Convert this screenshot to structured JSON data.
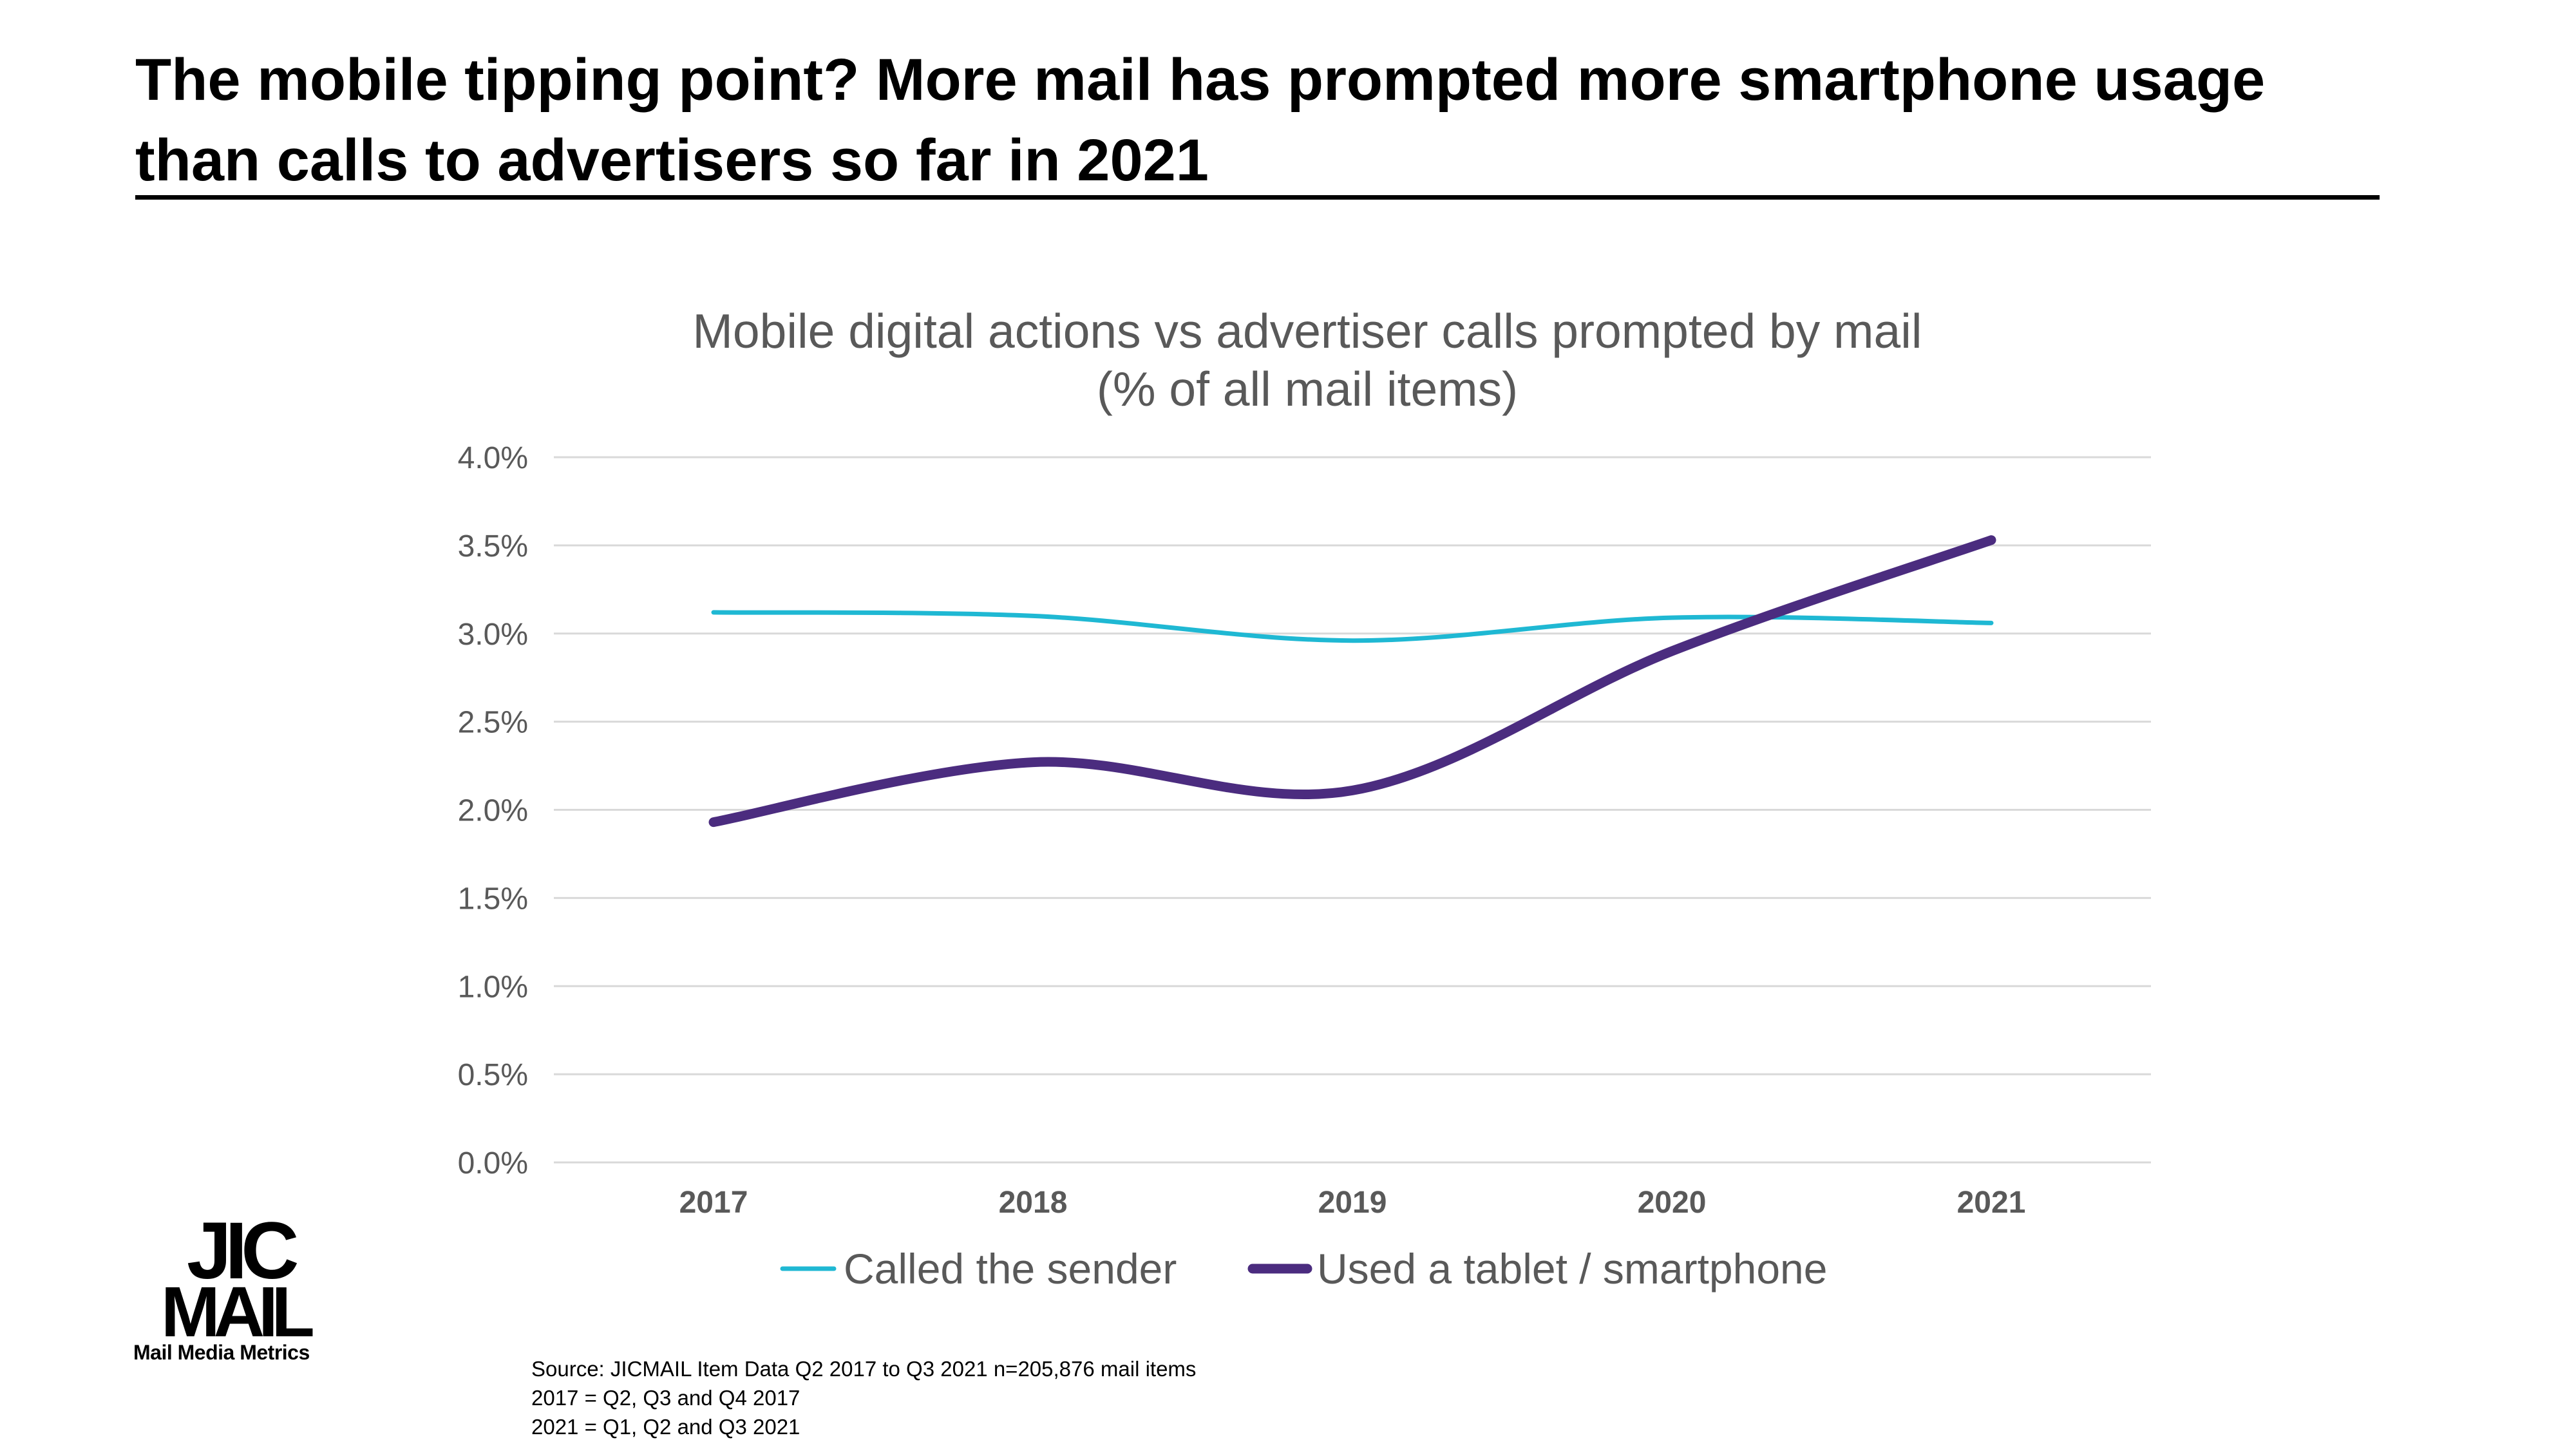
{
  "slide": {
    "headline_line1": "The mobile tipping point? More mail has prompted more smartphone usage",
    "headline_line2": "than calls to advertisers so far in 2021",
    "logo_text_top": "JIC",
    "logo_text_bottom": "MAIL",
    "tagline": "Mail Media Metrics",
    "source_lines": [
      "Source: JICMAIL Item Data Q2 2017 to Q3 2021 n=205,876 mail items",
      "2017 = Q2, Q3 and Q4 2017",
      "2021 = Q1, Q2 and Q3 2021"
    ]
  },
  "chart_data": {
    "type": "line",
    "title_line1": "Mobile digital actions vs advertiser calls prompted by mail",
    "title_line2": "(% of all mail items)",
    "categories": [
      "2017",
      "2018",
      "2019",
      "2020",
      "2021"
    ],
    "y_ticks": [
      "0.0%",
      "0.5%",
      "1.0%",
      "1.5%",
      "2.0%",
      "2.5%",
      "3.0%",
      "3.5%",
      "4.0%"
    ],
    "ylim": [
      0,
      4
    ],
    "grid": true,
    "legend_position": "bottom",
    "series": [
      {
        "name": "Called the sender",
        "values": [
          3.12,
          3.1,
          2.96,
          3.09,
          3.06
        ],
        "color": "#1fb8d3"
      },
      {
        "name": "Used a tablet / smartphone",
        "values": [
          1.93,
          2.27,
          2.11,
          2.9,
          3.53
        ],
        "color": "#4b2c7f"
      }
    ],
    "axis_text_color": "#595959",
    "title_color": "#595959",
    "gridline_color": "#d9d9d9"
  }
}
